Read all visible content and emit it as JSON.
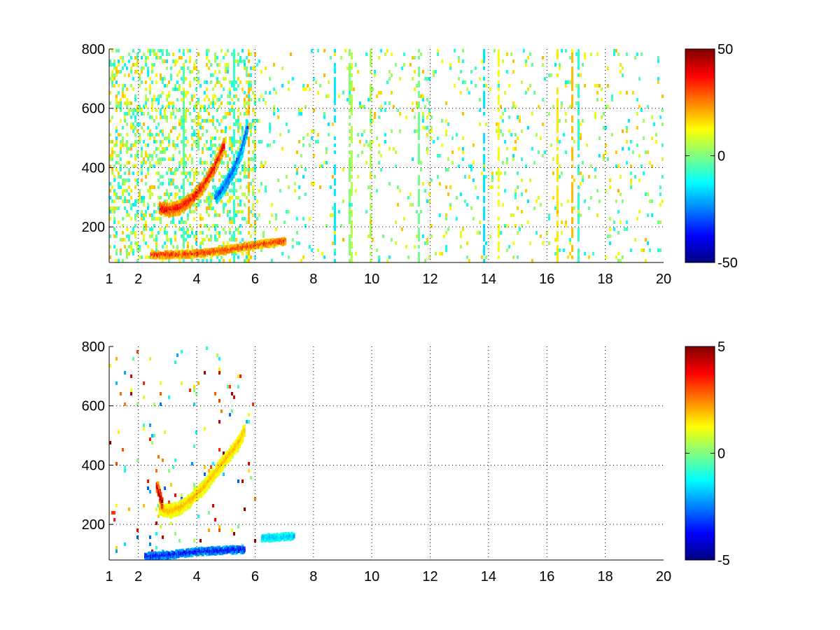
{
  "chart_data": [
    {
      "type": "heatmap",
      "title": "",
      "xlabel": "",
      "ylabel": "",
      "xlim": [
        1,
        20
      ],
      "ylim": [
        80,
        800
      ],
      "grid": true,
      "x_ticks": [
        1,
        2,
        4,
        6,
        8,
        10,
        12,
        14,
        16,
        18,
        20
      ],
      "x_tick_labels": [
        "1",
        "2",
        "4",
        "6",
        "8",
        "10",
        "12",
        "14",
        "16",
        "18",
        "20"
      ],
      "y_ticks": [
        200,
        400,
        600,
        800
      ],
      "y_tick_labels": [
        "200",
        "400",
        "600",
        "800"
      ],
      "colormap": "jet",
      "colorbar": {
        "min": -50,
        "max": 50,
        "ticks": [
          -50,
          0,
          50
        ],
        "tick_labels": [
          "-50",
          "0",
          "50"
        ],
        "placement": "right"
      },
      "features": [
        {
          "kind": "curve",
          "x": [
            2.7,
            3.0,
            3.4,
            3.8,
            4.2,
            4.6,
            4.9
          ],
          "y": [
            270,
            262,
            272,
            300,
            345,
            410,
            480
          ],
          "value": 40
        },
        {
          "kind": "curve",
          "x": [
            4.6,
            4.9,
            5.2,
            5.5,
            5.7
          ],
          "y": [
            300,
            340,
            390,
            460,
            540
          ],
          "value": -30
        },
        {
          "kind": "band",
          "x": [
            2.4,
            3.0,
            3.6,
            4.2,
            4.8,
            5.4,
            6.2,
            7.0
          ],
          "y": [
            112,
            112,
            114,
            118,
            125,
            135,
            148,
            158
          ],
          "value": 35
        },
        {
          "kind": "noise",
          "x_range": [
            1,
            20
          ],
          "y_range": [
            80,
            800
          ],
          "value_range": [
            -15,
            20
          ]
        }
      ]
    },
    {
      "type": "heatmap",
      "title": "",
      "xlabel": "",
      "ylabel": "",
      "xlim": [
        1,
        20
      ],
      "ylim": [
        80,
        800
      ],
      "grid": true,
      "x_ticks": [
        1,
        2,
        4,
        6,
        8,
        10,
        12,
        14,
        16,
        18,
        20
      ],
      "x_tick_labels": [
        "1",
        "2",
        "4",
        "6",
        "8",
        "10",
        "12",
        "14",
        "16",
        "18",
        "20"
      ],
      "y_ticks": [
        200,
        400,
        600,
        800
      ],
      "y_tick_labels": [
        "200",
        "400",
        "600",
        "800"
      ],
      "colormap": "jet",
      "colorbar": {
        "min": -5,
        "max": 5,
        "ticks": [
          -5,
          0,
          5
        ],
        "tick_labels": [
          "-5",
          "0",
          "5"
        ],
        "placement": "right"
      },
      "features": [
        {
          "kind": "curve",
          "x": [
            2.7,
            3.0,
            3.4,
            3.8,
            4.2,
            4.6,
            5.0,
            5.4,
            5.6
          ],
          "y": [
            260,
            250,
            262,
            290,
            330,
            380,
            430,
            480,
            520
          ],
          "value": 2
        },
        {
          "kind": "curve",
          "x": [
            2.6,
            2.8
          ],
          "y": [
            340,
            270
          ],
          "value": 5
        },
        {
          "kind": "band",
          "x": [
            2.2,
            3.0,
            3.6,
            4.2,
            4.8,
            5.6
          ],
          "y": [
            98,
            102,
            110,
            115,
            118,
            122
          ],
          "value": -4
        },
        {
          "kind": "band",
          "x": [
            6.2,
            6.6,
            7.0,
            7.3
          ],
          "y": [
            160,
            162,
            164,
            166
          ],
          "value": -2
        },
        {
          "kind": "noise",
          "x_range": [
            1,
            6
          ],
          "y_range": [
            80,
            800
          ],
          "value_range": [
            -3,
            5
          ]
        }
      ]
    }
  ]
}
